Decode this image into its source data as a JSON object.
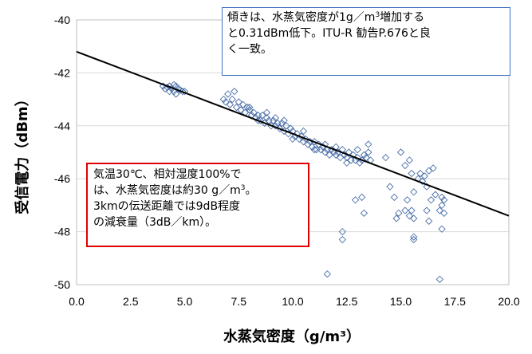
{
  "chart_data": {
    "type": "scatter",
    "xlabel": "水蒸気密度（g/m³）",
    "ylabel": "受信電力（dBm）",
    "xlim": [
      0,
      20
    ],
    "ylim": [
      -50,
      -40
    ],
    "x_ticks": [
      "0.0",
      "2.5",
      "5.0",
      "7.5",
      "10.0",
      "12.5",
      "15.0",
      "17.5",
      "20.0"
    ],
    "y_ticks": [
      "-40",
      "-42",
      "-44",
      "-46",
      "-48",
      "-50"
    ],
    "grid": "horizontal",
    "marker": "diamond",
    "colors": {
      "marker": "#4a6fa8",
      "trend": "#000000",
      "grid": "#d9d9d9",
      "note_top_border": "#3d6cc0",
      "note_left_border": "#e00000"
    },
    "trendline": {
      "slope": -0.31,
      "intercept": -41.2
    },
    "series": [
      {
        "points": [
          [
            4.0,
            -42.5
          ],
          [
            4.1,
            -42.6
          ],
          [
            4.2,
            -42.55
          ],
          [
            4.3,
            -42.5
          ],
          [
            4.4,
            -42.6
          ],
          [
            4.5,
            -42.7
          ],
          [
            4.6,
            -42.5
          ],
          [
            4.7,
            -42.6
          ],
          [
            4.8,
            -42.65
          ],
          [
            4.9,
            -42.7
          ],
          [
            4.5,
            -42.45
          ],
          [
            4.3,
            -42.7
          ],
          [
            4.6,
            -42.8
          ],
          [
            5.0,
            -42.7
          ],
          [
            6.8,
            -43.0
          ],
          [
            6.9,
            -43.1
          ],
          [
            7.0,
            -42.8
          ],
          [
            7.1,
            -43.2
          ],
          [
            7.2,
            -43.0
          ],
          [
            7.3,
            -42.7
          ],
          [
            7.4,
            -43.3
          ],
          [
            7.5,
            -43.1
          ],
          [
            7.6,
            -43.4
          ],
          [
            7.7,
            -43.2
          ],
          [
            7.8,
            -43.5
          ],
          [
            7.9,
            -43.3
          ],
          [
            8.0,
            -43.4
          ],
          [
            8.1,
            -43.6
          ],
          [
            8.2,
            -43.5
          ],
          [
            8.3,
            -43.7
          ],
          [
            8.4,
            -43.6
          ],
          [
            8.5,
            -43.8
          ],
          [
            8.6,
            -43.6
          ],
          [
            8.7,
            -43.9
          ],
          [
            8.8,
            -43.7
          ],
          [
            8.9,
            -43.8
          ],
          [
            9.0,
            -44.0
          ],
          [
            9.1,
            -43.8
          ],
          [
            9.2,
            -44.0
          ],
          [
            9.3,
            -43.9
          ],
          [
            9.4,
            -44.1
          ],
          [
            9.5,
            -43.9
          ],
          [
            9.6,
            -44.2
          ],
          [
            9.7,
            -44.0
          ],
          [
            9.8,
            -44.3
          ],
          [
            9.9,
            -44.1
          ],
          [
            10.0,
            -44.2
          ],
          [
            10.1,
            -44.4
          ],
          [
            10.2,
            -44.3
          ],
          [
            10.3,
            -44.5
          ],
          [
            10.4,
            -44.4
          ],
          [
            10.5,
            -44.6
          ],
          [
            10.6,
            -44.5
          ],
          [
            10.7,
            -44.7
          ],
          [
            10.8,
            -44.6
          ],
          [
            10.9,
            -44.8
          ],
          [
            11.0,
            -44.6
          ],
          [
            11.1,
            -44.9
          ],
          [
            11.2,
            -44.7
          ],
          [
            11.3,
            -44.9
          ],
          [
            11.4,
            -44.8
          ],
          [
            11.5,
            -45.0
          ],
          [
            11.6,
            -44.9
          ],
          [
            11.7,
            -45.1
          ],
          [
            11.8,
            -44.9
          ],
          [
            11.9,
            -45.0
          ],
          [
            12.0,
            -45.1
          ],
          [
            12.1,
            -45.0
          ],
          [
            12.2,
            -45.2
          ],
          [
            12.3,
            -44.9
          ],
          [
            12.4,
            -45.1
          ],
          [
            12.5,
            -45.2
          ],
          [
            12.6,
            -45.0
          ],
          [
            12.7,
            -45.3
          ],
          [
            12.8,
            -45.1
          ],
          [
            12.9,
            -45.3
          ],
          [
            13.0,
            -45.2
          ],
          [
            13.1,
            -45.4
          ],
          [
            13.2,
            -45.3
          ],
          [
            13.3,
            -45.1
          ],
          [
            13.4,
            -45.2
          ],
          [
            13.5,
            -45.0
          ],
          [
            13.6,
            -45.3
          ],
          [
            8.0,
            -43.3
          ],
          [
            8.4,
            -43.8
          ],
          [
            8.8,
            -43.5
          ],
          [
            9.2,
            -43.7
          ],
          [
            9.6,
            -43.8
          ],
          [
            10.0,
            -44.5
          ],
          [
            10.5,
            -44.2
          ],
          [
            11.0,
            -44.9
          ],
          [
            11.5,
            -44.7
          ],
          [
            12.0,
            -44.8
          ],
          [
            12.5,
            -45.4
          ],
          [
            13.0,
            -44.9
          ],
          [
            13.5,
            -44.7
          ],
          [
            14.3,
            -45.2
          ],
          [
            14.5,
            -46.3
          ],
          [
            14.7,
            -46.7
          ],
          [
            15.0,
            -45.0
          ],
          [
            15.2,
            -45.5
          ],
          [
            15.4,
            -45.3
          ],
          [
            15.5,
            -45.8
          ],
          [
            15.6,
            -46.5
          ],
          [
            15.8,
            -46.0
          ],
          [
            15.9,
            -45.8
          ],
          [
            16.0,
            -46.1
          ],
          [
            16.1,
            -45.9
          ],
          [
            16.2,
            -46.3
          ],
          [
            16.3,
            -45.7
          ],
          [
            16.4,
            -46.8
          ],
          [
            16.5,
            -45.6
          ],
          [
            16.6,
            -46.6
          ],
          [
            16.2,
            -47.2
          ],
          [
            16.3,
            -47.6
          ],
          [
            16.8,
            -47.2
          ],
          [
            16.9,
            -47.0
          ],
          [
            17.0,
            -47.3
          ],
          [
            16.9,
            -46.7
          ],
          [
            17.0,
            -46.8
          ],
          [
            16.9,
            -47.9
          ],
          [
            15.6,
            -48.2
          ],
          [
            15.6,
            -48.3
          ],
          [
            14.8,
            -47.5
          ],
          [
            14.9,
            -47.3
          ],
          [
            15.5,
            -47.2
          ],
          [
            16.8,
            -49.8
          ],
          [
            11.6,
            -49.6
          ],
          [
            12.3,
            -48.0
          ],
          [
            12.3,
            -48.3
          ],
          [
            12.9,
            -46.8
          ],
          [
            13.2,
            -46.7
          ],
          [
            13.3,
            -47.3
          ],
          [
            15.3,
            -46.8
          ],
          [
            15.4,
            -47.4
          ],
          [
            15.2,
            -47.2
          ],
          [
            15.6,
            -47.5
          ]
        ]
      }
    ]
  },
  "notes": {
    "top": [
      "傾きは、水蒸気密度が1g／m",
      "3",
      "増加する",
      "と0.31dBm低下。ITU-R  勧告P.676と良",
      "く一致。"
    ],
    "left": [
      " 気温30℃、相対湿度100%で",
      "は、水蒸気密度は約30 g／m",
      "3",
      "。",
      "3kmの伝送距離では9dB程度",
      "の減衰量（3dB／km）。"
    ]
  }
}
